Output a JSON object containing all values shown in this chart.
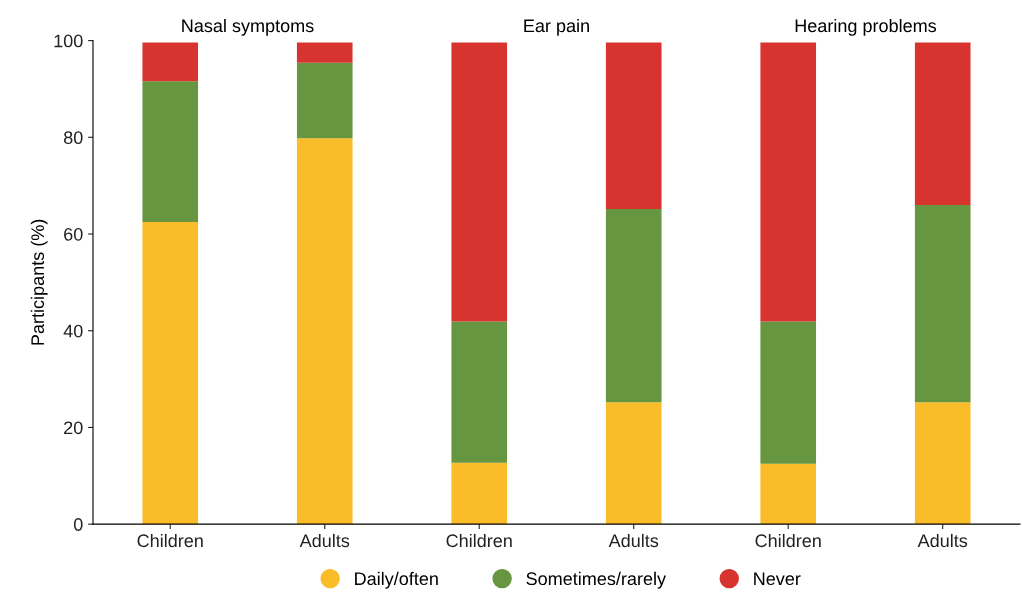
{
  "chart_data": {
    "type": "bar",
    "stacked": true,
    "ylabel": "Participants (%)",
    "categories": [
      "Children",
      "Adults",
      "Children",
      "Adults",
      "Children",
      "Adults"
    ],
    "series": [
      {
        "name": "Daily/often",
        "color": "#fbbc29",
        "values": [
          62.5,
          79.8,
          12.7,
          25.2,
          12.5,
          25.2
        ]
      },
      {
        "name": "Sometimes/rarely",
        "color": "#66963f",
        "values": [
          29.1,
          15.6,
          29.2,
          40.0,
          29.4,
          40.8
        ]
      },
      {
        "name": "Never",
        "color": "#d7342f",
        "values": [
          8.0,
          4.2,
          57.7,
          34.4,
          57.7,
          33.6
        ]
      }
    ],
    "annotations": [
      "Nasal symptoms",
      "Ear pain",
      "Hearing problems"
    ],
    "ylim": [
      0,
      100
    ],
    "yticks": [
      0,
      20,
      40,
      60,
      80,
      100
    ],
    "grid": false,
    "legend": "bottom"
  }
}
